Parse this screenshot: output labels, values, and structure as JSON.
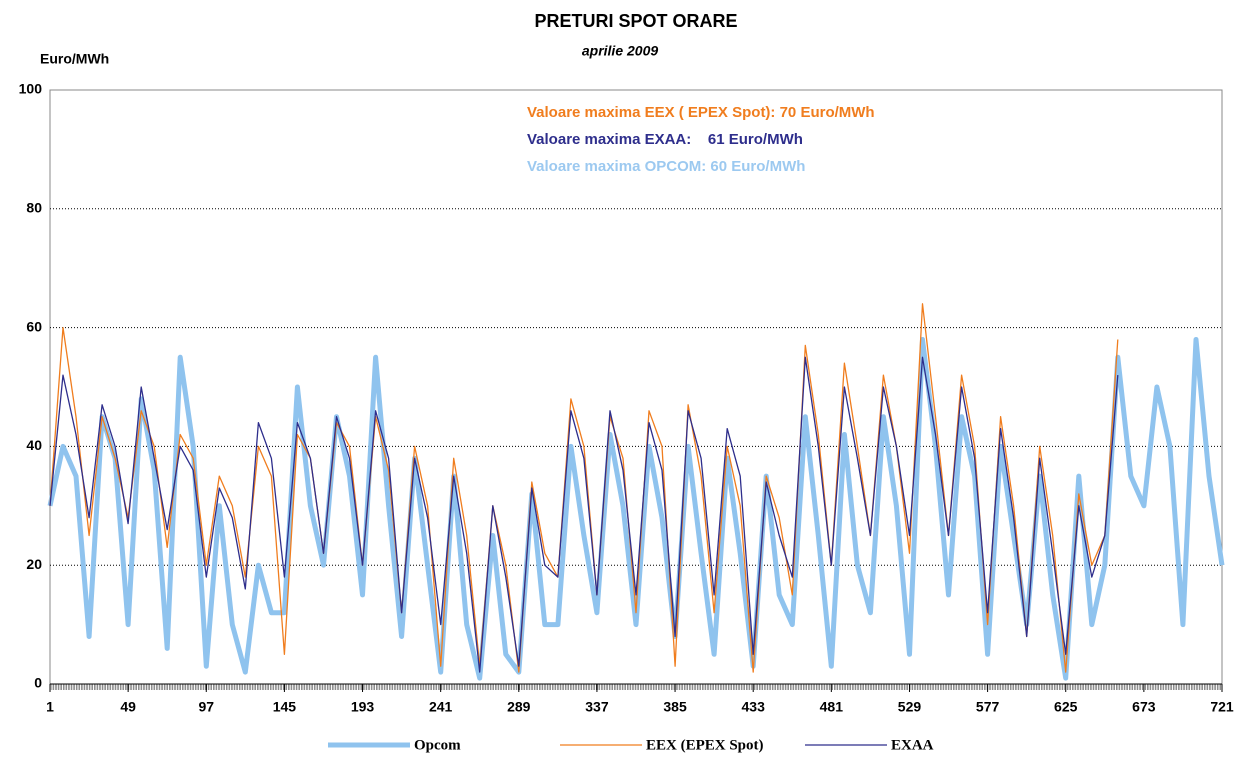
{
  "chart_data": {
    "type": "line",
    "title": "PRETURI SPOT ORARE",
    "subtitle": "aprilie 2009",
    "y_label": "Euro/MWh",
    "annotations": [
      {
        "text": "Valoare maxima EEX ( EPEX Spot): 70 Euro/MWh",
        "color": "#f07d1e"
      },
      {
        "text": "Valoare maxima EXAA:    61 Euro/MWh",
        "color": "#2e2e8c"
      },
      {
        "text": "Valoare maxima OPCOM: 60 Euro/MWh",
        "color": "#9cc9f0"
      }
    ],
    "x": [
      1,
      9,
      17,
      25,
      33,
      41,
      49,
      57,
      65,
      73,
      81,
      89,
      97,
      105,
      113,
      121,
      129,
      137,
      145,
      153,
      161,
      169,
      177,
      185,
      193,
      201,
      209,
      217,
      225,
      233,
      241,
      249,
      257,
      265,
      273,
      281,
      289,
      297,
      305,
      313,
      321,
      329,
      337,
      345,
      353,
      361,
      369,
      377,
      385,
      393,
      401,
      409,
      417,
      425,
      433,
      441,
      449,
      457,
      465,
      473,
      481,
      489,
      497,
      505,
      513,
      521,
      529,
      537,
      545,
      553,
      561,
      569,
      577,
      585,
      593,
      601,
      609,
      617,
      625,
      633,
      641,
      649,
      657,
      665,
      673,
      681,
      689,
      697,
      705,
      713,
      721
    ],
    "xlim": [
      1,
      721
    ],
    "xticks": [
      1,
      49,
      97,
      145,
      193,
      241,
      289,
      337,
      385,
      433,
      481,
      529,
      577,
      625,
      673,
      721
    ],
    "ylim": [
      0,
      100
    ],
    "yticks": [
      0,
      20,
      40,
      60,
      80,
      100
    ],
    "grid": true,
    "series": [
      {
        "name": "Opcom",
        "color": "#8fc3ee",
        "values": [
          30,
          40,
          35,
          8,
          45,
          38,
          10,
          48,
          36,
          6,
          55,
          40,
          3,
          30,
          10,
          2,
          20,
          12,
          12,
          50,
          30,
          20,
          45,
          35,
          15,
          55,
          30,
          8,
          38,
          20,
          2,
          35,
          10,
          1,
          25,
          5,
          2,
          32,
          10,
          10,
          40,
          25,
          12,
          42,
          30,
          10,
          40,
          28,
          8,
          40,
          22,
          5,
          38,
          22,
          3,
          35,
          15,
          10,
          45,
          25,
          3,
          42,
          20,
          12,
          45,
          30,
          5,
          58,
          40,
          15,
          45,
          35,
          5,
          40,
          25,
          10,
          35,
          15,
          1,
          35,
          10,
          20,
          55,
          35,
          30,
          50,
          40,
          10,
          58,
          35,
          20
        ]
      },
      {
        "name": "EEX (EPEX Spot)",
        "color": "#f07d1e",
        "values": [
          30,
          60,
          45,
          25,
          45,
          38,
          28,
          46,
          40,
          23,
          42,
          38,
          20,
          35,
          30,
          18,
          40,
          35,
          5,
          42,
          38,
          22,
          44,
          40,
          20,
          45,
          36,
          12,
          40,
          30,
          3,
          38,
          25,
          3,
          30,
          20,
          2,
          34,
          22,
          18,
          48,
          40,
          15,
          45,
          38,
          12,
          46,
          40,
          3,
          47,
          35,
          12,
          40,
          30,
          2,
          35,
          28,
          15,
          57,
          42,
          20,
          54,
          40,
          25,
          52,
          40,
          22,
          64,
          45,
          25,
          52,
          40,
          10,
          45,
          30,
          8,
          40,
          25,
          2,
          32,
          20,
          25,
          58,
          null,
          null,
          null,
          null,
          null,
          null,
          null,
          null
        ]
      },
      {
        "name": "EXAA",
        "color": "#2e2e8c",
        "values": [
          30,
          52,
          42,
          28,
          47,
          40,
          27,
          50,
          38,
          26,
          40,
          36,
          18,
          33,
          28,
          16,
          44,
          38,
          18,
          44,
          38,
          22,
          45,
          38,
          20,
          46,
          38,
          12,
          38,
          28,
          10,
          35,
          22,
          2,
          30,
          18,
          3,
          33,
          20,
          18,
          46,
          38,
          15,
          46,
          36,
          15,
          44,
          36,
          8,
          46,
          38,
          15,
          43,
          35,
          5,
          34,
          25,
          18,
          55,
          40,
          20,
          50,
          38,
          25,
          50,
          40,
          25,
          55,
          42,
          25,
          50,
          38,
          12,
          43,
          28,
          8,
          38,
          22,
          5,
          30,
          18,
          25,
          52,
          null,
          null,
          null,
          null,
          null,
          null,
          null,
          null
        ]
      }
    ]
  }
}
